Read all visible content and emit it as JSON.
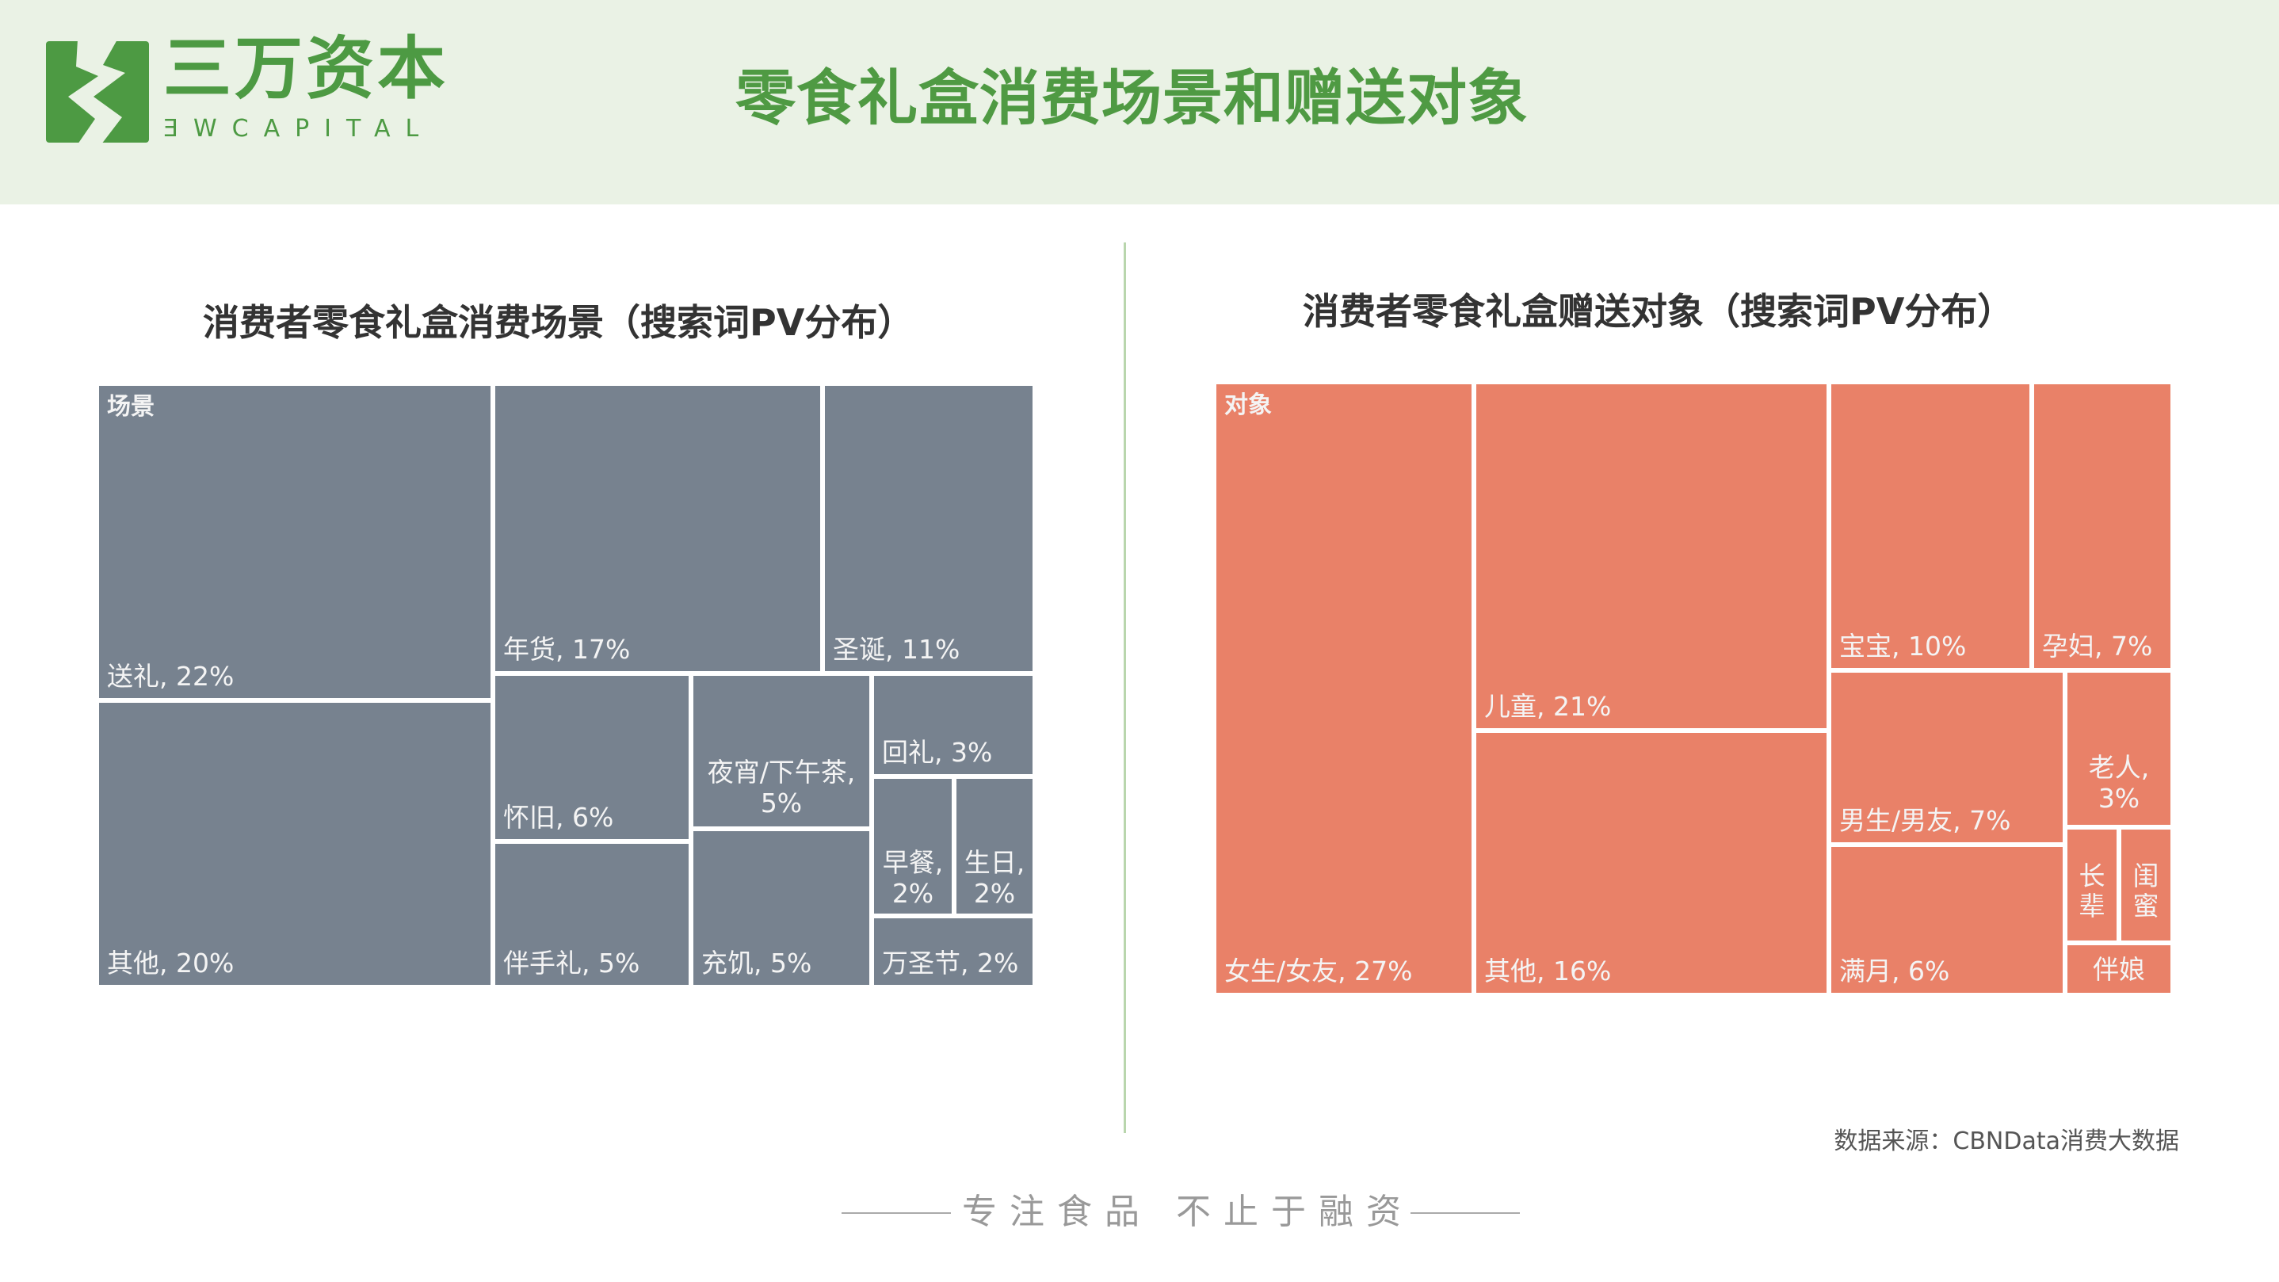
{
  "brand": {
    "name_cn": "三万资本",
    "name_en": "ƎWCAPITAL",
    "accent": "#4d9a43"
  },
  "page_title": "零食礼盒消费场景和赠送对象",
  "chart_data": [
    {
      "type": "treemap",
      "title": "消费者零食礼盒消费场景（搜索词PV分布）",
      "root_label": "场景",
      "color": "#77828f",
      "items": [
        {
          "name": "送礼",
          "value": 22,
          "label": "送礼, 22%"
        },
        {
          "name": "其他",
          "value": 20,
          "label": "其他, 20%"
        },
        {
          "name": "年货",
          "value": 17,
          "label": "年货, 17%"
        },
        {
          "name": "圣诞",
          "value": 11,
          "label": "圣诞, 11%"
        },
        {
          "name": "怀旧",
          "value": 6,
          "label": "怀旧, 6%"
        },
        {
          "name": "伴手礼",
          "value": 5,
          "label": "伴手礼, 5%"
        },
        {
          "name": "夜宵/下午茶",
          "value": 5,
          "label": "夜宵/下午茶,\n5%"
        },
        {
          "name": "充饥",
          "value": 5,
          "label": "充饥, 5%"
        },
        {
          "name": "回礼",
          "value": 3,
          "label": "回礼, 3%"
        },
        {
          "name": "早餐",
          "value": 2,
          "label": "早餐,\n2%"
        },
        {
          "name": "生日",
          "value": 2,
          "label": "生日,\n2%"
        },
        {
          "name": "万圣节",
          "value": 2,
          "label": "万圣节, 2%"
        }
      ]
    },
    {
      "type": "treemap",
      "title": "消费者零食礼盒赠送对象（搜索词PV分布）",
      "root_label": "对象",
      "color": "#e98168",
      "items": [
        {
          "name": "女生/女友",
          "value": 27,
          "label": "女生/女友, 27%"
        },
        {
          "name": "儿童",
          "value": 21,
          "label": "儿童, 21%"
        },
        {
          "name": "其他",
          "value": 16,
          "label": "其他, 16%"
        },
        {
          "name": "宝宝",
          "value": 10,
          "label": "宝宝, 10%"
        },
        {
          "name": "孕妇",
          "value": 7,
          "label": "孕妇, 7%"
        },
        {
          "name": "男生/男友",
          "value": 7,
          "label": "男生/男友, 7%"
        },
        {
          "name": "满月",
          "value": 6,
          "label": "满月, 6%"
        },
        {
          "name": "老人",
          "value": 3,
          "label": "老人,\n3%"
        },
        {
          "name": "长辈",
          "label": "长\n辈"
        },
        {
          "name": "闺蜜",
          "label": "闺\n蜜"
        },
        {
          "name": "伴娘",
          "label": "伴娘"
        }
      ]
    }
  ],
  "source": "数据来源：CBNData消费大数据",
  "footer": "专注食品  不止于融资"
}
